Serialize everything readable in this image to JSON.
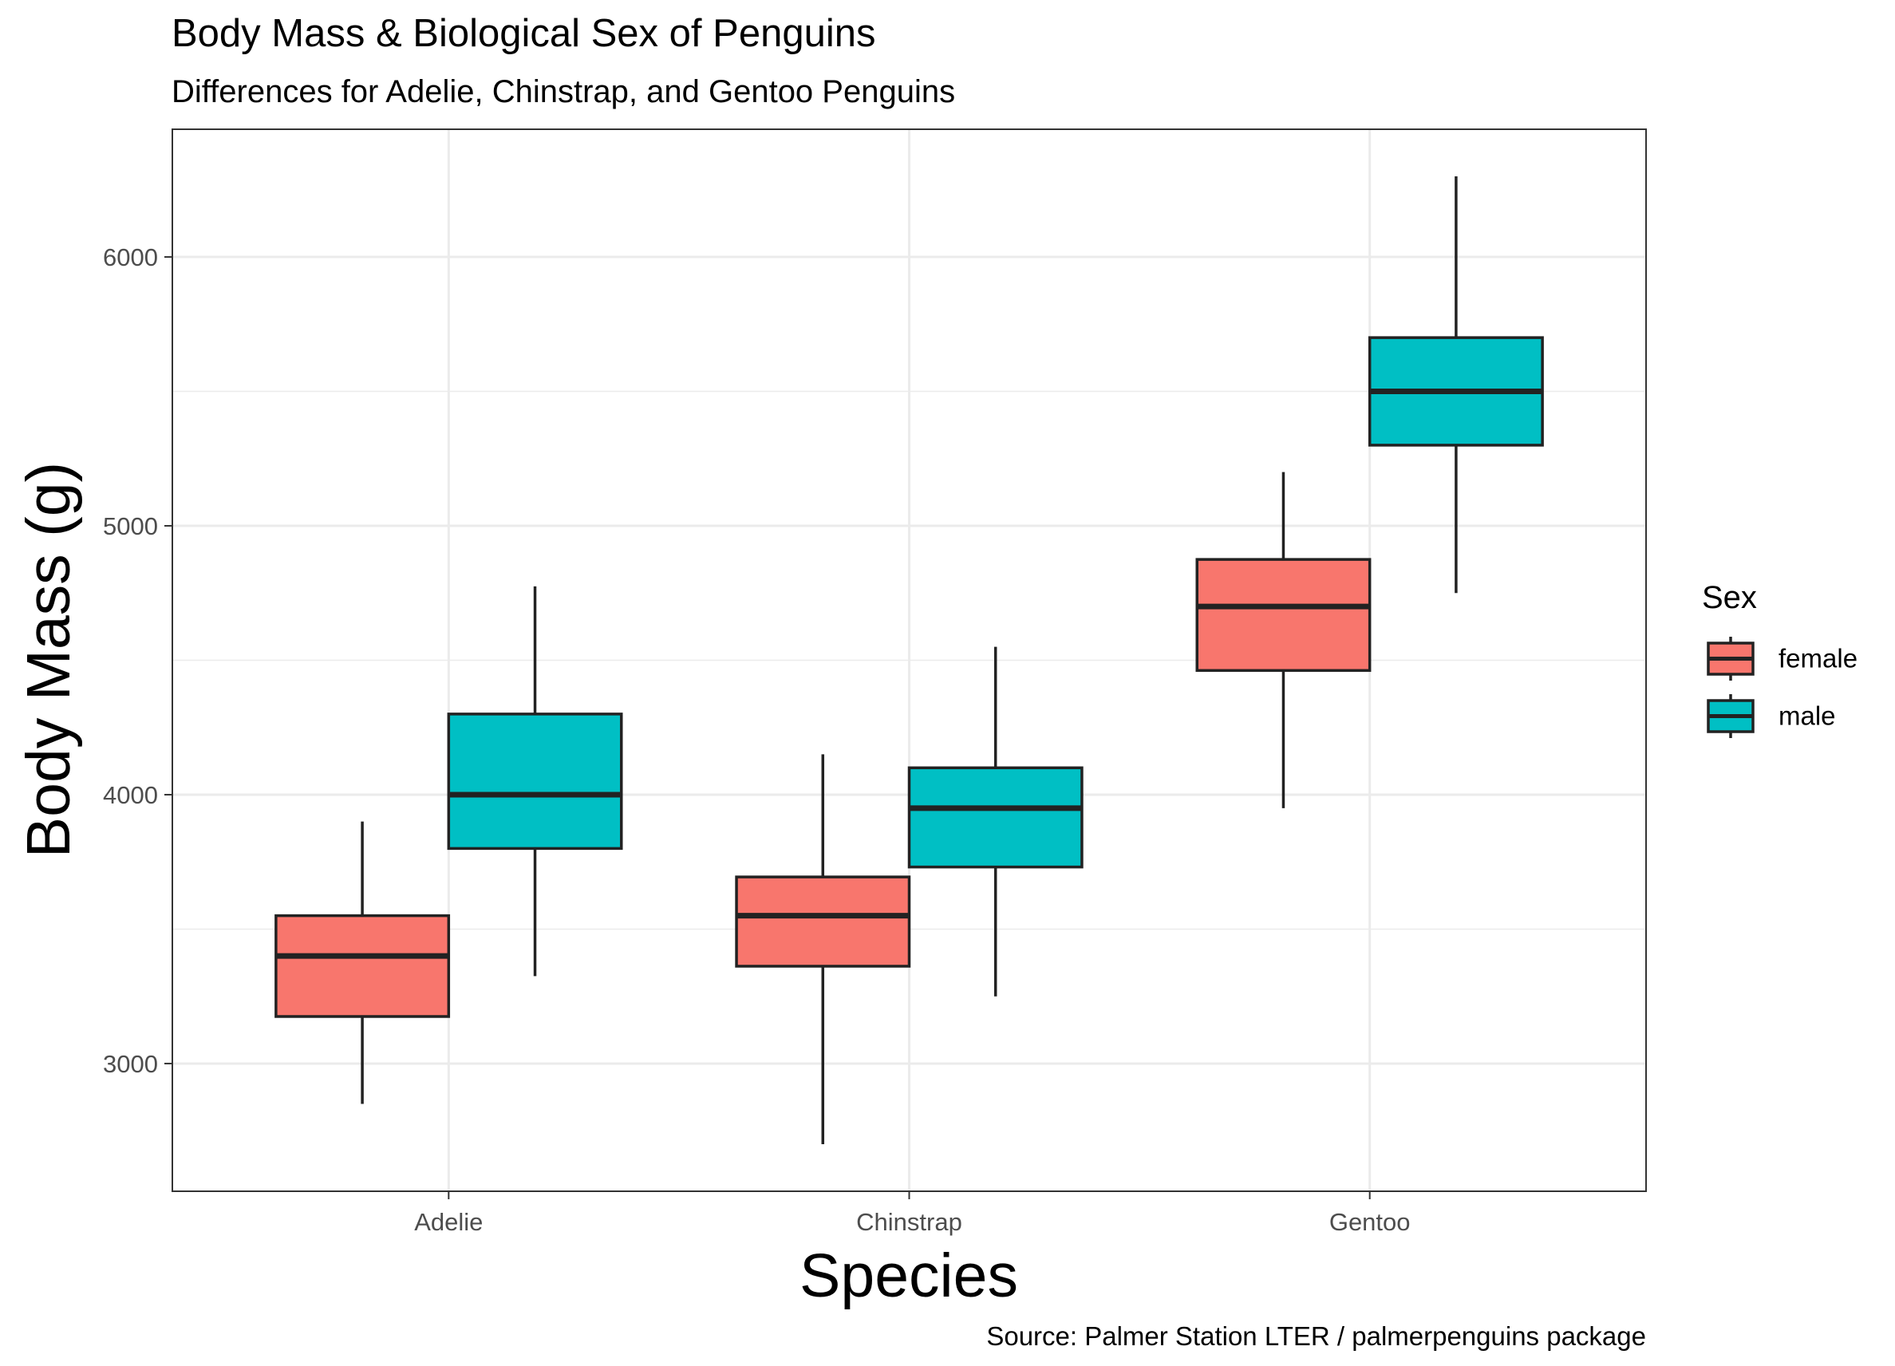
{
  "chart_data": {
    "type": "boxplot",
    "title": "Body Mass & Biological Sex of Penguins",
    "subtitle": "Differences for Adelie, Chinstrap, and Gentoo Penguins",
    "caption": "Source: Palmer Station LTER / palmerpenguins package",
    "xlabel": "Species",
    "ylabel": "Body Mass (g)",
    "ylim": [
      2525,
      6475
    ],
    "yticks": [
      3000,
      4000,
      5000,
      6000
    ],
    "ytick_labels": [
      "3000",
      "4000",
      "5000",
      "6000"
    ],
    "categories": [
      "Adelie",
      "Chinstrap",
      "Gentoo"
    ],
    "grid": true,
    "legend": {
      "title": "Sex",
      "position": "right"
    },
    "series": [
      {
        "name": "female",
        "color": "#F8766D",
        "boxes": [
          {
            "min": 2850,
            "q1": 3175,
            "median": 3400,
            "q3": 3550,
            "max": 3900
          },
          {
            "min": 2700,
            "q1": 3362,
            "median": 3550,
            "q3": 3694,
            "max": 4150
          },
          {
            "min": 3950,
            "q1": 4462,
            "median": 4700,
            "q3": 4875,
            "max": 5200
          }
        ]
      },
      {
        "name": "male",
        "color": "#00BFC4",
        "boxes": [
          {
            "min": 3325,
            "q1": 3800,
            "median": 4000,
            "q3": 4300,
            "max": 4775
          },
          {
            "min": 3250,
            "q1": 3731,
            "median": 3950,
            "q3": 4100,
            "max": 4550
          },
          {
            "min": 4750,
            "q1": 5300,
            "median": 5500,
            "q3": 5700,
            "max": 6300
          }
        ]
      }
    ]
  }
}
